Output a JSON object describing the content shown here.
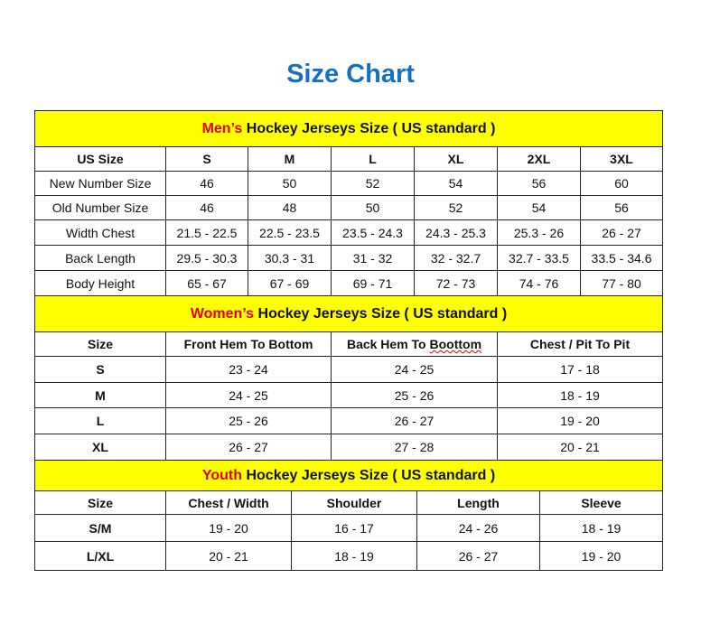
{
  "title": "Size Chart",
  "colors": {
    "title": "#1670c0",
    "banner_bg": "#ffff00",
    "highlight": "#e00000"
  },
  "men": {
    "banner_highlight": "Men’s",
    "banner_rest": " Hockey Jerseys Size ( US standard )",
    "headers": [
      "US Size",
      "S",
      "M",
      "L",
      "XL",
      "2XL",
      "3XL"
    ],
    "rows": [
      [
        "New Number Size",
        "46",
        "50",
        "52",
        "54",
        "56",
        "60"
      ],
      [
        "Old Number Size",
        "46",
        "48",
        "50",
        "52",
        "54",
        "56"
      ],
      [
        "Width Chest",
        "21.5 - 22.5",
        "22.5 - 23.5",
        "23.5 - 24.3",
        "24.3 - 25.3",
        "25.3 - 26",
        "26 - 27"
      ],
      [
        "Back Length",
        "29.5 - 30.3",
        "30.3 - 31",
        "31 - 32",
        "32 - 32.7",
        "32.7 - 33.5",
        "33.5 - 34.6"
      ],
      [
        "Body Height",
        "65 - 67",
        "67 - 69",
        "69 - 71",
        "72 - 73",
        "74 - 76",
        "77 - 80"
      ]
    ]
  },
  "women": {
    "banner_highlight": "Women’s",
    "banner_rest": " Hockey Jerseys Size ( US standard )",
    "headers": [
      "Size",
      "Front Hem To Bottom",
      "Back Hem To Boottom",
      "Chest / Pit To Pit"
    ],
    "rows": [
      [
        "S",
        "23 - 24",
        "24 - 25",
        "17 - 18"
      ],
      [
        "M",
        "24 - 25",
        "25 - 26",
        "18 - 19"
      ],
      [
        "L",
        "25 - 26",
        "26 - 27",
        "19 - 20"
      ],
      [
        "XL",
        "26 - 27",
        "27 - 28",
        "20 - 21"
      ]
    ]
  },
  "youth": {
    "banner_highlight": "Youth",
    "banner_rest": " Hockey Jerseys Size ( US standard )",
    "headers": [
      "Size",
      "Chest / Width",
      "Shoulder",
      "Length",
      "Sleeve"
    ],
    "rows": [
      [
        "S/M",
        "19 - 20",
        "16 - 17",
        "24 - 26",
        "18 - 19"
      ],
      [
        "L/XL",
        "20 - 21",
        "18 - 19",
        "26 - 27",
        "19 - 20"
      ]
    ]
  }
}
